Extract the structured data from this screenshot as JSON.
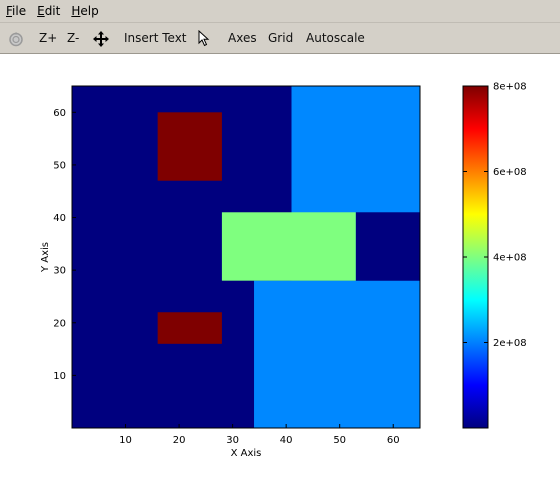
{
  "menu": {
    "file": {
      "underline": "F",
      "rest": "ile"
    },
    "edit": {
      "underline": "E",
      "rest": "dit"
    },
    "help": {
      "underline": "H",
      "rest": "elp"
    }
  },
  "toolbar": {
    "zoom_in": "Z+",
    "zoom_out": "Z-",
    "insert_text": "Insert Text",
    "axes": "Axes",
    "grid": "Grid",
    "autoscale": "Autoscale",
    "icons": [
      "rotate-icon",
      "pan-move-icon",
      "select-pointer-icon"
    ]
  },
  "chart_data": {
    "type": "heatmap",
    "xlabel": "X Axis",
    "ylabel": "Y Axis",
    "xlim": [
      0,
      65
    ],
    "ylim": [
      0,
      65
    ],
    "xticks": [
      10,
      20,
      30,
      40,
      50,
      60
    ],
    "yticks": [
      10,
      20,
      30,
      40,
      50,
      60
    ],
    "regions": [
      {
        "x0": 0,
        "x1": 65,
        "y0": 0,
        "y1": 65,
        "value": 0,
        "color": "#00007f"
      },
      {
        "x0": 41,
        "x1": 65,
        "y0": 28,
        "y1": 65,
        "value": 170000000,
        "color": "#0088ff"
      },
      {
        "x0": 34,
        "x1": 65,
        "y0": 0,
        "y1": 28,
        "value": 170000000,
        "color": "#0088ff"
      },
      {
        "x0": 53,
        "x1": 65,
        "y0": 28,
        "y1": 41,
        "value": 0,
        "color": "#00007f"
      },
      {
        "x0": 28,
        "x1": 53,
        "y0": 28,
        "y1": 41,
        "value": 400000000,
        "color": "#7fff7f"
      },
      {
        "x0": 16,
        "x1": 28,
        "y0": 47,
        "y1": 60,
        "value": 800000000,
        "color": "#7f0000"
      },
      {
        "x0": 16,
        "x1": 28,
        "y0": 16,
        "y1": 22,
        "value": 800000000,
        "color": "#7f0000"
      }
    ],
    "colorbar": {
      "range": [
        0,
        800000000
      ],
      "ticks": [
        200000000,
        400000000,
        600000000,
        800000000
      ],
      "tick_labels": [
        "2e+08",
        "4e+08",
        "6e+08",
        "8e+08"
      ],
      "colormap": "jet"
    }
  }
}
